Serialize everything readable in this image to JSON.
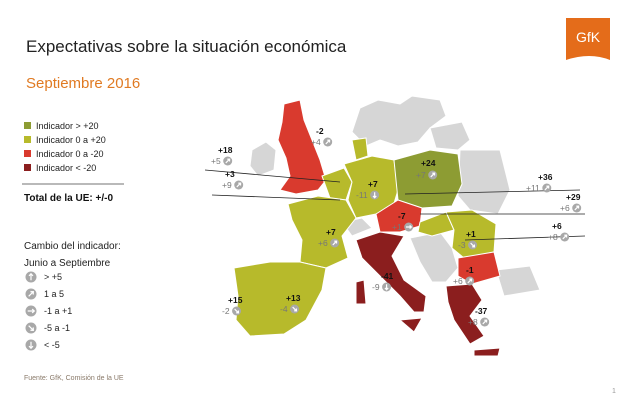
{
  "header": {
    "title": "Expectativas sobre la situación económica",
    "subtitle": "Septiembre 2016",
    "logo": "GfK"
  },
  "legend": {
    "items": [
      "Indicador  >  +20",
      "Indicador  0  a +20",
      "Indicador  0  a -20",
      "Indicador  < -20"
    ],
    "total": "Total de la UE: +/-0"
  },
  "change_legend": {
    "title": "Cambio del indicador:",
    "subtitle": "Junio a Septiembre",
    "items": [
      "> +5",
      "1 a 5",
      "-1 a +1",
      "-5 a -1",
      "< -5"
    ]
  },
  "countries": [
    {
      "value": "+18",
      "change": "+5"
    },
    {
      "value": "+3",
      "change": "+9"
    },
    {
      "value": "-2",
      "change": "+4"
    },
    {
      "value": "+7",
      "change": "-11"
    },
    {
      "value": "+24",
      "change": "+7"
    },
    {
      "value": "+36",
      "change": "+11"
    },
    {
      "value": "+29",
      "change": "+6"
    },
    {
      "value": "-7",
      "change": "+1"
    },
    {
      "value": "+1",
      "change": "-3"
    },
    {
      "value": "+6",
      "change": "+8"
    },
    {
      "value": "+7",
      "change": "+6"
    },
    {
      "value": "-41",
      "change": "-9"
    },
    {
      "value": "-1",
      "change": "+6"
    },
    {
      "value": "-37",
      "change": "+8"
    },
    {
      "value": "+13",
      "change": "-4"
    },
    {
      "value": "+15",
      "change": "-2"
    }
  ],
  "footer": {
    "source": "Fuente: GfK, Comisión de la UE",
    "page": "1"
  }
}
